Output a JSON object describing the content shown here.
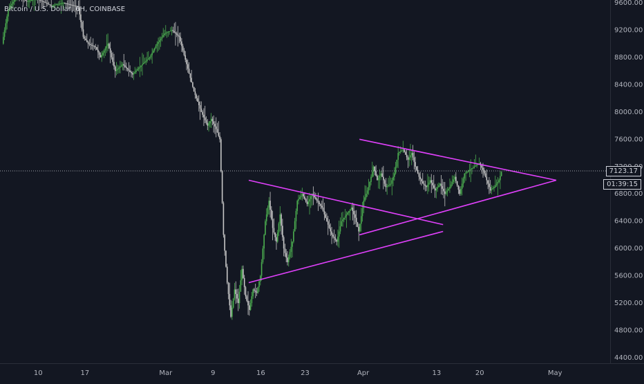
{
  "header": {
    "symbol_title": "Bitcoin / U.S. Dollar, 6H, COINBASE"
  },
  "price_axis": {
    "ticks": [
      "9600.00",
      "9200.00",
      "8800.00",
      "8400.00",
      "8000.00",
      "7600.00",
      "7200.00",
      "6800.00",
      "6400.00",
      "6000.00",
      "5600.00",
      "5200.00",
      "4800.00",
      "4400.00"
    ],
    "current_price": "7123.17",
    "countdown": "01:39:15"
  },
  "time_axis": {
    "ticks": [
      "10",
      "17",
      "Mar",
      "9",
      "16",
      "23",
      "Apr",
      "13",
      "20",
      "May"
    ]
  },
  "colors": {
    "background": "#131722",
    "up_candle": "#4caf50",
    "down_candle": "#c8c8c8",
    "trendline": "#e040fb",
    "current_price_line": "#d1d4dc",
    "axis_text": "#b2b5be"
  },
  "chart_data": {
    "type": "candlestick",
    "title": "Bitcoin / U.S. Dollar, 6H, COINBASE",
    "ylim": [
      4400,
      9700
    ],
    "x_ticks": [
      "10",
      "17",
      "Mar",
      "9",
      "16",
      "23",
      "Apr",
      "13",
      "20",
      "May"
    ],
    "y_ticks": [
      9600,
      9200,
      8800,
      8400,
      8000,
      7600,
      7200,
      6800,
      6400,
      6000,
      5600,
      5200,
      4800,
      4400
    ],
    "current_price": 7123.17,
    "price_path": [
      [
        0,
        9000
      ],
      [
        5,
        9500
      ],
      [
        12,
        9700
      ],
      [
        20,
        9620
      ],
      [
        28,
        9660
      ],
      [
        40,
        9560
      ],
      [
        50,
        9600
      ],
      [
        62,
        9540
      ],
      [
        66,
        9100
      ],
      [
        70,
        9000
      ],
      [
        76,
        8950
      ],
      [
        80,
        8800
      ],
      [
        86,
        9000
      ],
      [
        92,
        8600
      ],
      [
        98,
        8700
      ],
      [
        106,
        8550
      ],
      [
        114,
        8700
      ],
      [
        120,
        8800
      ],
      [
        126,
        9000
      ],
      [
        132,
        9150
      ],
      [
        138,
        9200
      ],
      [
        144,
        9100
      ],
      [
        150,
        8700
      ],
      [
        156,
        8300
      ],
      [
        162,
        8000
      ],
      [
        167,
        7800
      ],
      [
        170,
        7900
      ],
      [
        174,
        7750
      ],
      [
        177,
        7600
      ],
      [
        180,
        6200
      ],
      [
        183,
        5500
      ],
      [
        186,
        5000
      ],
      [
        189,
        5400
      ],
      [
        192,
        5200
      ],
      [
        195,
        5700
      ],
      [
        198,
        5300
      ],
      [
        201,
        5100
      ],
      [
        204,
        5400
      ],
      [
        207,
        5350
      ],
      [
        210,
        5600
      ],
      [
        214,
        6400
      ],
      [
        217,
        6700
      ],
      [
        220,
        6300
      ],
      [
        223,
        6100
      ],
      [
        226,
        6500
      ],
      [
        229,
        6000
      ],
      [
        232,
        5800
      ],
      [
        236,
        6100
      ],
      [
        240,
        6700
      ],
      [
        244,
        6800
      ],
      [
        248,
        6650
      ],
      [
        252,
        6800
      ],
      [
        256,
        6700
      ],
      [
        260,
        6600
      ],
      [
        264,
        6400
      ],
      [
        268,
        6200
      ],
      [
        272,
        6100
      ],
      [
        276,
        6400
      ],
      [
        280,
        6500
      ],
      [
        284,
        6600
      ],
      [
        287,
        6450
      ],
      [
        290,
        6250
      ],
      [
        294,
        6700
      ],
      [
        298,
        6900
      ],
      [
        302,
        7200
      ],
      [
        305,
        7000
      ],
      [
        308,
        7100
      ],
      [
        312,
        6900
      ],
      [
        316,
        6950
      ],
      [
        319,
        7100
      ],
      [
        322,
        7400
      ],
      [
        326,
        7450
      ],
      [
        330,
        7300
      ],
      [
        333,
        7400
      ],
      [
        336,
        7200
      ],
      [
        339,
        7050
      ],
      [
        342,
        6950
      ],
      [
        345,
        6900
      ],
      [
        348,
        7000
      ],
      [
        352,
        6850
      ],
      [
        356,
        6950
      ],
      [
        360,
        6800
      ],
      [
        364,
        6900
      ],
      [
        368,
        7050
      ],
      [
        372,
        6800
      ],
      [
        376,
        7100
      ],
      [
        380,
        7150
      ],
      [
        384,
        7200
      ],
      [
        388,
        7250
      ],
      [
        391,
        7150
      ],
      [
        394,
        7000
      ],
      [
        397,
        6850
      ],
      [
        400,
        6900
      ],
      [
        404,
        7000
      ],
      [
        406,
        7123
      ]
    ],
    "trendlines": [
      {
        "from": [
          200,
          5500
        ],
        "to": [
          358,
          6250
        ]
      },
      {
        "from": [
          200,
          7000
        ],
        "to": [
          358,
          6350
        ]
      },
      {
        "from": [
          290,
          6200
        ],
        "to": [
          450,
          7000
        ]
      },
      {
        "from": [
          290,
          7600
        ],
        "to": [
          450,
          7000
        ]
      }
    ]
  }
}
